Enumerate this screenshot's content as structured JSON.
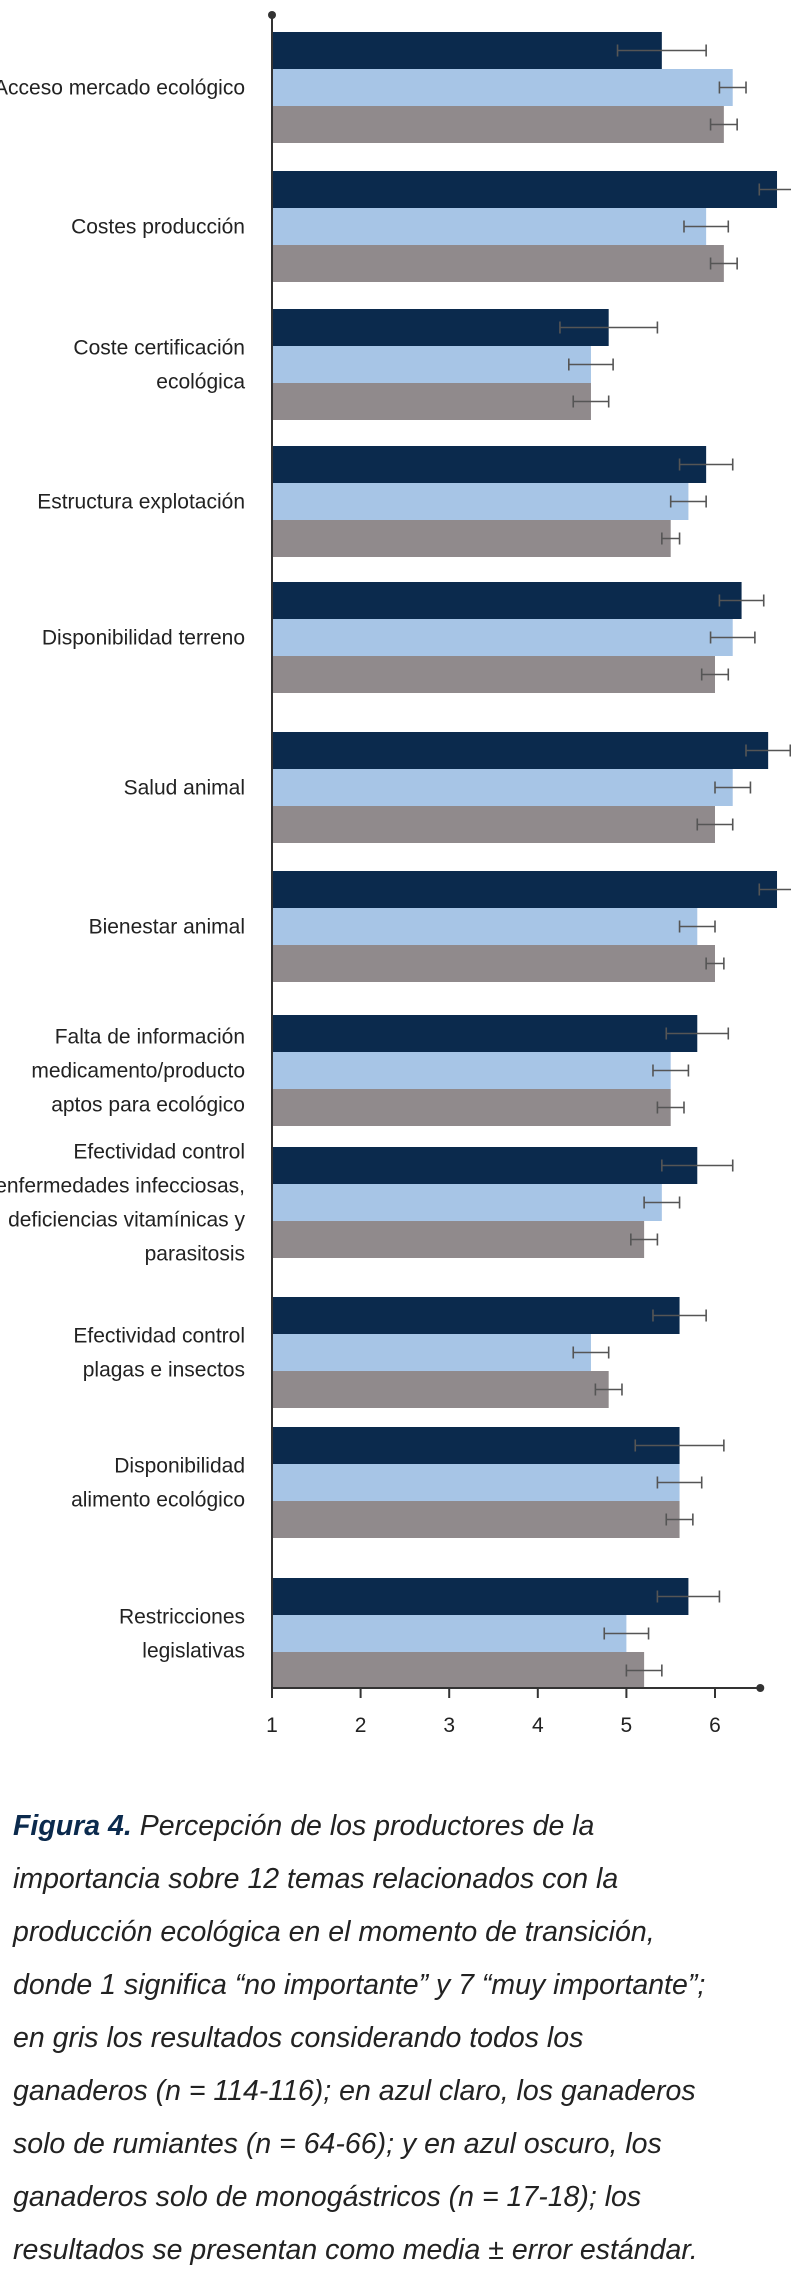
{
  "chart_data": {
    "type": "bar",
    "orientation": "horizontal",
    "xlim": [
      1,
      6.5
    ],
    "xticks": [
      "1",
      "2",
      "3",
      "4",
      "5",
      "6"
    ],
    "categories": [
      [
        "Acceso mercado ecológico"
      ],
      [
        "Costes producción"
      ],
      [
        "Coste certificación",
        "ecológica"
      ],
      [
        "Estructura explotación"
      ],
      [
        "Disponibilidad terreno"
      ],
      [
        "Salud animal"
      ],
      [
        "Bienestar animal"
      ],
      [
        "Falta de información",
        "medicamento/producto",
        "aptos para ecológico"
      ],
      [
        "Efectividad control",
        "enfermedades infecciosas,",
        "deficiencias vitamínicas y",
        "parasitosis"
      ],
      [
        "Efectividad control",
        "plagas e insectos"
      ],
      [
        "Disponibilidad",
        "alimento ecológico"
      ],
      [
        "Restricciones",
        "legislativas"
      ]
    ],
    "series": [
      {
        "key": "monogastricos",
        "color": "#0b2a4d",
        "values": [
          5.4,
          6.7,
          4.8,
          5.9,
          6.3,
          6.6,
          6.7,
          5.8,
          5.8,
          5.6,
          5.6,
          5.7
        ],
        "errors": [
          0.5,
          0.2,
          0.55,
          0.3,
          0.25,
          0.25,
          0.2,
          0.35,
          0.4,
          0.3,
          0.5,
          0.35
        ]
      },
      {
        "key": "rumiantes",
        "color": "#a7c5e6",
        "values": [
          6.2,
          5.9,
          4.6,
          5.7,
          6.2,
          6.2,
          5.8,
          5.5,
          5.4,
          4.6,
          5.6,
          5.0
        ],
        "errors": [
          0.15,
          0.25,
          0.25,
          0.2,
          0.25,
          0.2,
          0.2,
          0.2,
          0.2,
          0.2,
          0.25,
          0.25
        ]
      },
      {
        "key": "todos",
        "color": "#908a8c",
        "values": [
          6.1,
          6.1,
          4.6,
          5.5,
          6.0,
          6.0,
          6.0,
          5.5,
          5.2,
          4.8,
          5.6,
          5.2
        ],
        "errors": [
          0.15,
          0.15,
          0.2,
          0.1,
          0.15,
          0.2,
          0.1,
          0.15,
          0.15,
          0.15,
          0.15,
          0.2
        ]
      }
    ]
  },
  "caption": {
    "label": "Figura 4.",
    "text": "Percepción de los productores de la importancia sobre 12 temas relacionados con la producción ecológica en el momento de transición, donde 1 significa “no importante” y 7 “muy importante”; en gris los resultados considerando todos los ganaderos (n = 114-116); en azul claro, los ganaderos solo de rumiantes (n = 64-66); y en azul oscuro, los ganaderos solo de monogástricos (n = 17-18); los resultados se presentan como media ± error estándar."
  }
}
